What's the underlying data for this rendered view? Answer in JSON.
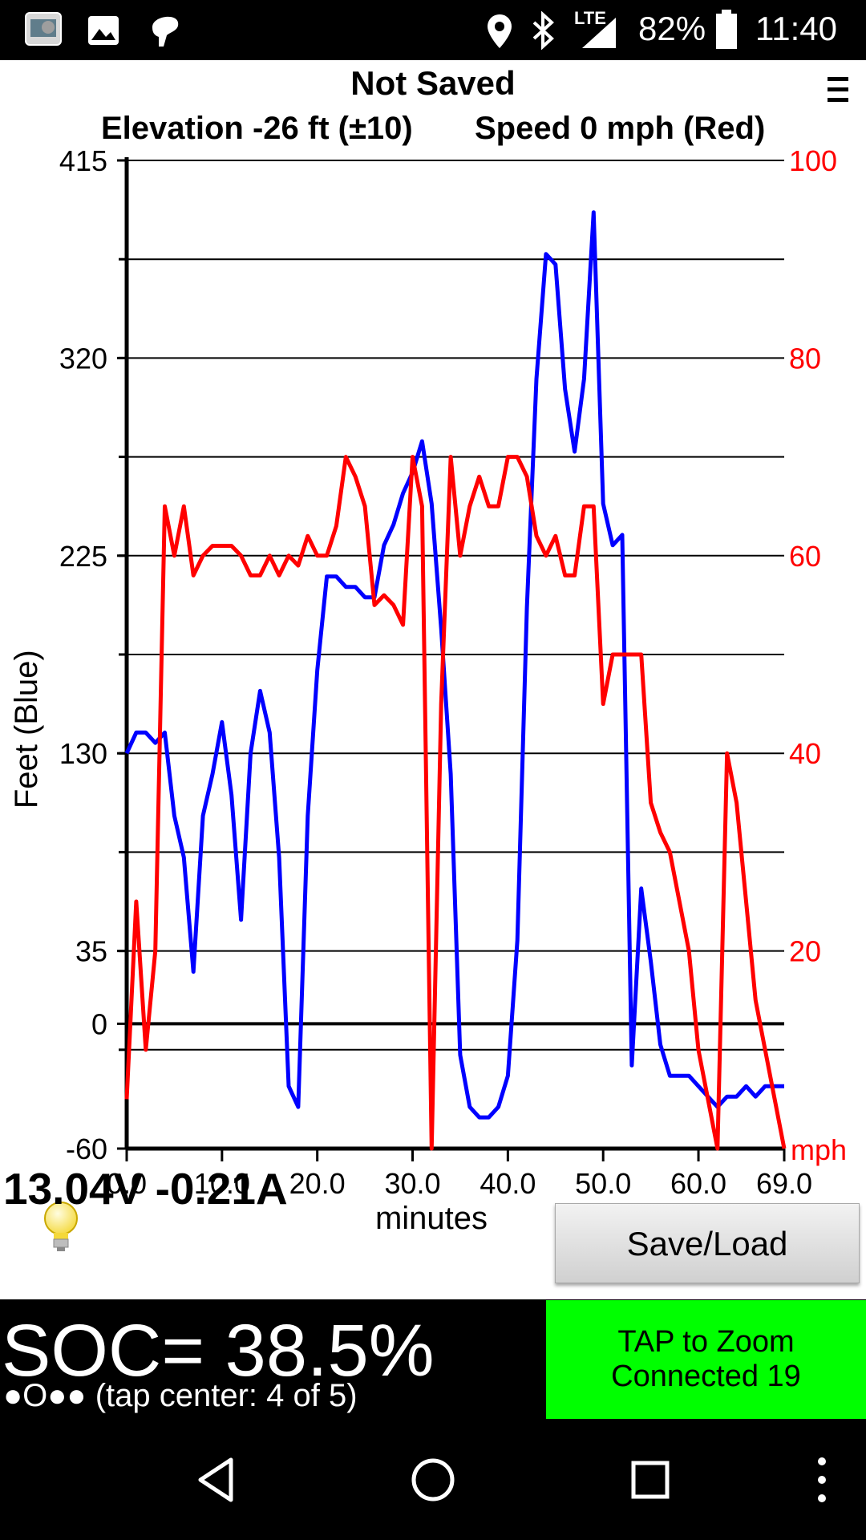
{
  "status_bar": {
    "icons": [
      "app-icon",
      "image-icon",
      "notification-icon",
      "location-icon",
      "bluetooth-icon",
      "lte-signal-icon",
      "battery-icon"
    ],
    "network": "LTE",
    "battery": "82%",
    "time": "11:40"
  },
  "header": {
    "title": "Not Saved",
    "elevation": "Elevation -26 ft (±10)",
    "speed": "Speed 0 mph (Red)"
  },
  "chart_data": {
    "type": "line",
    "xlabel": "minutes",
    "ylabel": "Feet   (Blue)",
    "y2label": "mph",
    "x_ticks": [
      "0.0",
      "10.0",
      "20.0",
      "30.0",
      "40.0",
      "50.0",
      "60.0",
      "69.0"
    ],
    "y_ticks": [
      "415",
      "320",
      "225",
      "130",
      "35",
      "0",
      "-60"
    ],
    "y2_ticks": [
      "100",
      "80",
      "60",
      "40",
      "20"
    ],
    "xlim": [
      0,
      69.0
    ],
    "ylim": [
      -60,
      415
    ],
    "y2lim": [
      0,
      100
    ],
    "colors": {
      "elevation": "#0000ff",
      "speed": "#ff0000"
    },
    "series": [
      {
        "name": "Feet (Blue)",
        "axis": "left",
        "x": [
          0,
          1,
          2,
          3,
          4,
          5,
          6,
          7,
          8,
          9,
          10,
          11,
          12,
          13,
          14,
          15,
          16,
          17,
          18,
          19,
          20,
          21,
          22,
          23,
          24,
          25,
          26,
          27,
          28,
          29,
          30,
          31,
          32,
          33,
          34,
          35,
          36,
          37,
          38,
          39,
          40,
          41,
          42,
          43,
          44,
          45,
          46,
          47,
          48,
          49,
          50,
          51,
          52,
          53,
          54,
          55,
          56,
          57,
          58,
          59,
          60,
          61,
          62,
          63,
          64,
          65,
          66,
          67,
          68,
          69
        ],
        "values": [
          130,
          140,
          140,
          135,
          140,
          100,
          80,
          25,
          100,
          120,
          145,
          110,
          50,
          130,
          160,
          140,
          80,
          -30,
          -40,
          100,
          170,
          215,
          215,
          210,
          210,
          205,
          205,
          230,
          240,
          255,
          265,
          280,
          250,
          190,
          120,
          -15,
          -40,
          -45,
          -45,
          -40,
          -25,
          40,
          200,
          310,
          370,
          365,
          305,
          275,
          310,
          390,
          250,
          230,
          235,
          -20,
          65,
          30,
          -10,
          -25,
          -25,
          -25,
          -30,
          -35,
          -40,
          -35,
          -35,
          -30,
          -35,
          -30,
          -30,
          -30
        ]
      },
      {
        "name": "Speed (Red)",
        "axis": "right",
        "x": [
          0,
          1,
          2,
          3,
          4,
          5,
          6,
          7,
          8,
          9,
          10,
          11,
          12,
          13,
          14,
          15,
          16,
          17,
          18,
          19,
          20,
          21,
          22,
          23,
          24,
          25,
          26,
          27,
          28,
          29,
          30,
          31,
          32,
          33,
          34,
          35,
          36,
          37,
          38,
          39,
          40,
          41,
          42,
          43,
          44,
          45,
          46,
          47,
          48,
          49,
          50,
          51,
          52,
          53,
          54,
          55,
          56,
          57,
          58,
          59,
          60,
          61,
          62,
          63,
          64,
          65,
          66,
          67,
          68,
          69
        ],
        "values": [
          5,
          25,
          10,
          20,
          65,
          60,
          65,
          58,
          60,
          61,
          61,
          61,
          60,
          58,
          58,
          60,
          58,
          60,
          59,
          62,
          60,
          60,
          63,
          70,
          68,
          65,
          55,
          56,
          55,
          53,
          70,
          65,
          0,
          45,
          70,
          60,
          65,
          68,
          65,
          65,
          70,
          70,
          68,
          62,
          60,
          62,
          58,
          58,
          65,
          65,
          45,
          50,
          50,
          50,
          50,
          35,
          32,
          30,
          25,
          20,
          10,
          5,
          0,
          40,
          35,
          25,
          15,
          10,
          5,
          0
        ]
      }
    ],
    "grid": true
  },
  "electrical": {
    "reading": "13.04V -0.21A",
    "bulb_icon": "lightbulb-icon"
  },
  "save_load_button": "Save/Load",
  "soc": {
    "value": "SOC= 38.5%",
    "sub": "●O●● (tap center: 4 of 5)"
  },
  "zoom_box": {
    "line1": "TAP to Zoom",
    "line2": "Connected 19",
    "color": "#00ff00"
  },
  "nav": {
    "back": "back-icon",
    "home": "home-icon",
    "recents": "recents-icon",
    "more": "more-icon"
  }
}
